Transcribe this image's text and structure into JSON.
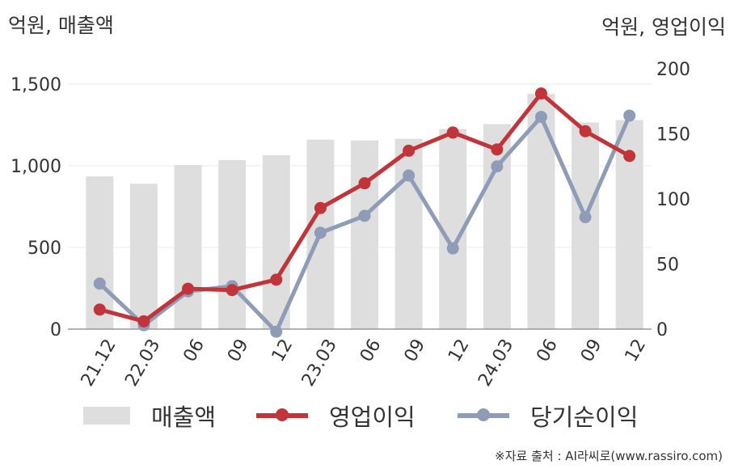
{
  "units": {
    "left": "억원, 매출액",
    "right": "억원, 영업이익"
  },
  "chart_data": {
    "type": "bar+line",
    "categories": [
      "21.12",
      "22.03",
      "06",
      "09",
      "12",
      "23.03",
      "06",
      "09",
      "12",
      "24.03",
      "06",
      "09",
      "12"
    ],
    "series": [
      {
        "name": "매출액",
        "type": "bar",
        "axis": "left",
        "color": "#dedede",
        "values": [
          935,
          890,
          1005,
          1035,
          1065,
          1160,
          1155,
          1165,
          1225,
          1255,
          1440,
          1265,
          1280
        ]
      },
      {
        "name": "영업이익",
        "type": "line",
        "axis": "right",
        "color": "#c0343a",
        "values": [
          15,
          6,
          31,
          30,
          38,
          93,
          112,
          137,
          151,
          138,
          181,
          152,
          133
        ]
      },
      {
        "name": "당기순이익",
        "type": "line",
        "axis": "right",
        "color": "#8f9cb7",
        "values": [
          35,
          3,
          29,
          33,
          -2,
          74,
          87,
          118,
          62,
          125,
          163,
          86,
          164
        ]
      }
    ],
    "left_axis": {
      "ylim": [
        0,
        1500
      ],
      "ticks": [
        "0",
        "500",
        "1,000",
        "1,500"
      ]
    },
    "right_axis": {
      "ylim": [
        0,
        200
      ],
      "ticks": [
        "0",
        "50",
        "100",
        "150",
        "200"
      ]
    },
    "grid": true,
    "legend_position": "bottom"
  },
  "legend": {
    "sales": "매출액",
    "op_profit": "영업이익",
    "net_income": "당기순이익"
  },
  "source": "※자료 출처 : AI라씨로(www.rassiro.com)"
}
